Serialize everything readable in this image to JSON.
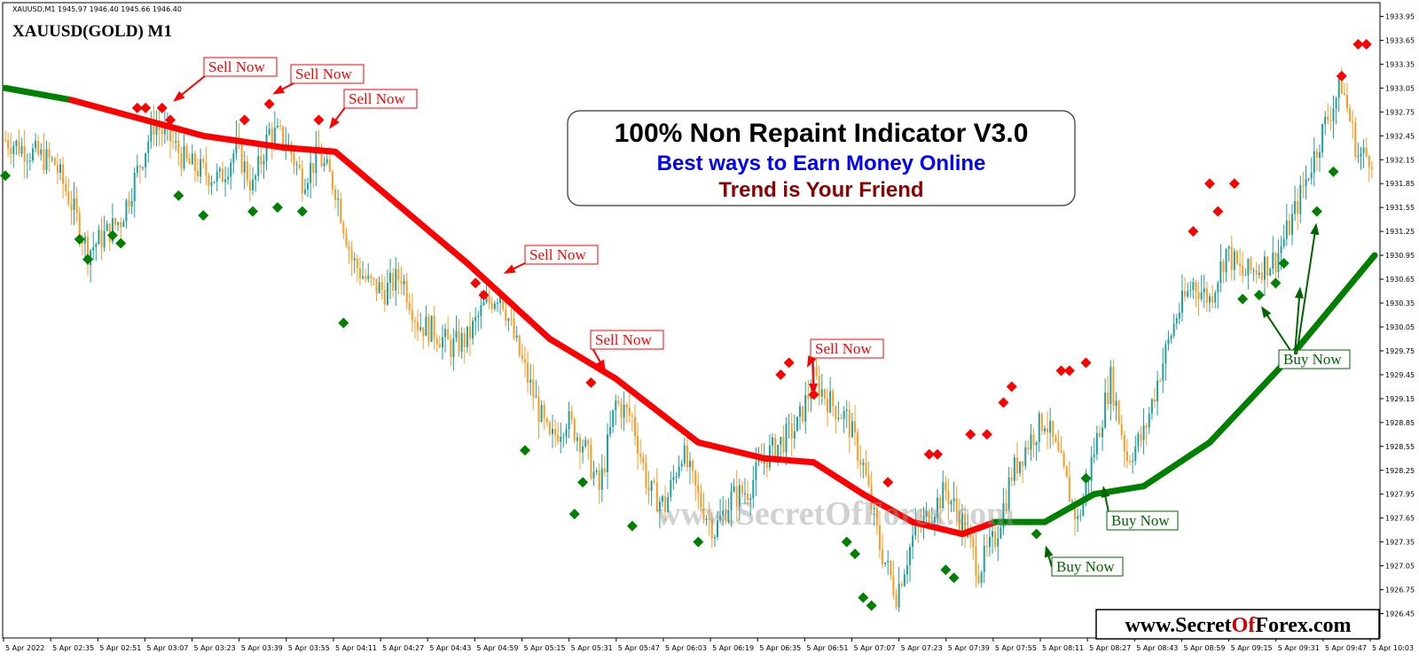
{
  "header": {
    "info_line": "XAUUSD,M1  1945.97 1946.40 1945.66 1946.40",
    "symbol_title": "XAUUSD(GOLD) M1"
  },
  "headline": {
    "line1": "100% Non Repaint Indicator V3.0",
    "line2": "Best ways to Earn Money Online",
    "line3": "Trend is Your Friend"
  },
  "watermark": "www.SecretOfForex.com",
  "url_box": {
    "part1": "www.Secret",
    "part2": "Of",
    "part3": "Forex.com"
  },
  "colors": {
    "bull_candle": "#1fa0a0",
    "bear_candle": "#ff9a1f",
    "trend_down": "#ff0000",
    "trend_up": "#008000",
    "sell_marker": "#ff0000",
    "buy_marker": "#008000",
    "sell_label": "#ff0000",
    "buy_label": "#006400"
  },
  "labels": {
    "sell": "Sell Now",
    "buy": "Buy Now"
  },
  "chart_data": {
    "type": "candlestick",
    "symbol": "XAUUSD",
    "timeframe": "M1",
    "ylim": [
      1926.3,
      1934.0
    ],
    "y_ticks": [
      "1933.95",
      "1933.65",
      "1933.35",
      "1933.05",
      "1932.75",
      "1932.45",
      "1932.15",
      "1931.85",
      "1931.55",
      "1931.25",
      "1930.95",
      "1930.65",
      "1930.35",
      "1930.05",
      "1929.75",
      "1929.45",
      "1929.15",
      "1928.85",
      "1928.55",
      "1928.25",
      "1927.95",
      "1927.65",
      "1927.35",
      "1927.05",
      "1926.75",
      "1926.45"
    ],
    "x_ticks": [
      "5 Apr 2022",
      "5 Apr 02:35",
      "5 Apr 02:51",
      "5 Apr 03:07",
      "5 Apr 03:23",
      "5 Apr 03:39",
      "5 Apr 03:55",
      "5 Apr 04:11",
      "5 Apr 04:27",
      "5 Apr 04:43",
      "5 Apr 04:59",
      "5 Apr 05:15",
      "5 Apr 05:31",
      "5 Apr 05:47",
      "5 Apr 06:03",
      "5 Apr 06:19",
      "5 Apr 06:35",
      "5 Apr 06:51",
      "5 Apr 07:07",
      "5 Apr 07:23",
      "5 Apr 07:39",
      "5 Apr 07:55",
      "5 Apr 08:11",
      "5 Apr 08:27",
      "5 Apr 08:43",
      "5 Apr 08:59",
      "5 Apr 09:15",
      "5 Apr 09:31",
      "5 Apr 09:47",
      "5 Apr 10:03"
    ],
    "price_path": [
      [
        0,
        1932.4
      ],
      [
        2,
        1932.3
      ],
      [
        4,
        1932.2
      ],
      [
        6,
        1932.1
      ],
      [
        8,
        1931.6
      ],
      [
        10,
        1931.0
      ],
      [
        12,
        1931.2
      ],
      [
        14,
        1931.4
      ],
      [
        16,
        1932.0
      ],
      [
        18,
        1932.6
      ],
      [
        20,
        1932.4
      ],
      [
        22,
        1932.1
      ],
      [
        24,
        1932.0
      ],
      [
        26,
        1931.9
      ],
      [
        28,
        1932.3
      ],
      [
        30,
        1931.8
      ],
      [
        32,
        1932.5
      ],
      [
        34,
        1932.4
      ],
      [
        36,
        1931.9
      ],
      [
        38,
        1932.2
      ],
      [
        40,
        1931.8
      ],
      [
        42,
        1930.9
      ],
      [
        44,
        1930.6
      ],
      [
        46,
        1930.5
      ],
      [
        48,
        1930.7
      ],
      [
        50,
        1930.1
      ],
      [
        52,
        1930.0
      ],
      [
        54,
        1929.8
      ],
      [
        56,
        1929.9
      ],
      [
        58,
        1930.3
      ],
      [
        60,
        1930.5
      ],
      [
        62,
        1929.8
      ],
      [
        64,
        1929.2
      ],
      [
        66,
        1928.6
      ],
      [
        68,
        1928.9
      ],
      [
        70,
        1928.6
      ],
      [
        72,
        1928.0
      ],
      [
        74,
        1929.1
      ],
      [
        76,
        1928.9
      ],
      [
        78,
        1928.0
      ],
      [
        80,
        1927.8
      ],
      [
        82,
        1928.5
      ],
      [
        84,
        1927.9
      ],
      [
        86,
        1927.5
      ],
      [
        88,
        1927.9
      ],
      [
        90,
        1928.0
      ],
      [
        92,
        1928.4
      ],
      [
        94,
        1928.6
      ],
      [
        96,
        1928.8
      ],
      [
        98,
        1929.4
      ],
      [
        100,
        1929.1
      ],
      [
        102,
        1928.9
      ],
      [
        104,
        1928.3
      ],
      [
        106,
        1927.3
      ],
      [
        108,
        1926.7
      ],
      [
        110,
        1927.4
      ],
      [
        112,
        1927.7
      ],
      [
        114,
        1928.0
      ],
      [
        116,
        1927.6
      ],
      [
        118,
        1927.0
      ],
      [
        120,
        1927.4
      ],
      [
        122,
        1928.2
      ],
      [
        124,
        1928.6
      ],
      [
        126,
        1928.9
      ],
      [
        128,
        1928.3
      ],
      [
        130,
        1927.6
      ],
      [
        132,
        1928.5
      ],
      [
        134,
        1929.4
      ],
      [
        136,
        1928.4
      ],
      [
        138,
        1928.7
      ],
      [
        140,
        1929.5
      ],
      [
        142,
        1930.2
      ],
      [
        144,
        1930.6
      ],
      [
        146,
        1930.4
      ],
      [
        148,
        1931.0
      ],
      [
        150,
        1930.7
      ],
      [
        152,
        1930.8
      ],
      [
        154,
        1930.9
      ],
      [
        156,
        1931.4
      ],
      [
        158,
        1932.0
      ],
      [
        160,
        1932.6
      ],
      [
        162,
        1933.1
      ],
      [
        164,
        1932.2
      ],
      [
        166,
        1932.2
      ]
    ],
    "trend_line": [
      {
        "x": 0,
        "y": 1933.05,
        "state": "up"
      },
      {
        "x": 8,
        "y": 1932.9,
        "state": "down"
      },
      {
        "x": 24,
        "y": 1932.45,
        "state": "down"
      },
      {
        "x": 34,
        "y": 1932.3,
        "state": "down"
      },
      {
        "x": 40,
        "y": 1932.25,
        "state": "down"
      },
      {
        "x": 56,
        "y": 1930.85,
        "state": "down"
      },
      {
        "x": 66,
        "y": 1929.9,
        "state": "down"
      },
      {
        "x": 74,
        "y": 1929.4,
        "state": "down"
      },
      {
        "x": 84,
        "y": 1928.6,
        "state": "down"
      },
      {
        "x": 92,
        "y": 1928.4,
        "state": "down"
      },
      {
        "x": 98,
        "y": 1928.35,
        "state": "down"
      },
      {
        "x": 104,
        "y": 1927.95,
        "state": "down"
      },
      {
        "x": 110,
        "y": 1927.6,
        "state": "down"
      },
      {
        "x": 116,
        "y": 1927.45,
        "state": "down"
      },
      {
        "x": 120,
        "y": 1927.6,
        "state": "up"
      },
      {
        "x": 126,
        "y": 1927.6,
        "state": "up"
      },
      {
        "x": 132,
        "y": 1927.95,
        "state": "up"
      },
      {
        "x": 138,
        "y": 1928.05,
        "state": "up"
      },
      {
        "x": 146,
        "y": 1928.6,
        "state": "up"
      },
      {
        "x": 156,
        "y": 1929.7,
        "state": "up"
      },
      {
        "x": 166,
        "y": 1930.95,
        "state": "up"
      }
    ],
    "sell_markers": [
      [
        16,
        1932.8
      ],
      [
        17,
        1932.8
      ],
      [
        19,
        1932.8
      ],
      [
        20,
        1932.65
      ],
      [
        29,
        1932.65
      ],
      [
        32,
        1932.85
      ],
      [
        38,
        1932.65
      ],
      [
        57,
        1930.6
      ],
      [
        58,
        1930.45
      ],
      [
        71,
        1929.35
      ],
      [
        94,
        1929.45
      ],
      [
        95,
        1929.6
      ],
      [
        98,
        1929.2
      ],
      [
        107,
        1928.1
      ],
      [
        112,
        1928.45
      ],
      [
        113,
        1928.45
      ],
      [
        117,
        1928.7
      ],
      [
        119,
        1928.7
      ],
      [
        121,
        1929.1
      ],
      [
        122,
        1929.3
      ],
      [
        128,
        1929.5
      ],
      [
        129,
        1929.5
      ],
      [
        131,
        1929.6
      ],
      [
        144,
        1931.25
      ],
      [
        146,
        1931.85
      ],
      [
        147,
        1931.5
      ],
      [
        149,
        1931.85
      ],
      [
        162,
        1933.2
      ],
      [
        164,
        1933.6
      ],
      [
        165,
        1933.6
      ]
    ],
    "buy_markers": [
      [
        0,
        1931.95
      ],
      [
        9,
        1931.15
      ],
      [
        10,
        1930.9
      ],
      [
        13,
        1931.2
      ],
      [
        14,
        1931.1
      ],
      [
        21,
        1931.7
      ],
      [
        24,
        1931.45
      ],
      [
        30,
        1931.5
      ],
      [
        33,
        1931.55
      ],
      [
        36,
        1931.5
      ],
      [
        41,
        1930.1
      ],
      [
        63,
        1928.5
      ],
      [
        70,
        1928.1
      ],
      [
        69,
        1927.7
      ],
      [
        76,
        1927.55
      ],
      [
        84,
        1927.35
      ],
      [
        102,
        1927.35
      ],
      [
        103,
        1927.2
      ],
      [
        104,
        1926.65
      ],
      [
        105,
        1926.55
      ],
      [
        114,
        1927.0
      ],
      [
        115,
        1926.9
      ],
      [
        125,
        1927.45
      ],
      [
        131,
        1928.15
      ],
      [
        150,
        1930.4
      ],
      [
        152,
        1930.45
      ],
      [
        154,
        1930.6
      ],
      [
        155,
        1930.85
      ],
      [
        159,
        1931.5
      ],
      [
        161,
        1932.0
      ]
    ],
    "annotations": [
      {
        "text": "Sell Now",
        "kind": "sell",
        "anchor_x": 20,
        "anchor_y": 1932.85
      },
      {
        "text": "Sell Now",
        "kind": "sell",
        "anchor_x": 32,
        "anchor_y": 1932.95
      },
      {
        "text": "Sell Now",
        "kind": "sell",
        "anchor_x": 39,
        "anchor_y": 1932.5
      },
      {
        "text": "Sell Now",
        "kind": "sell",
        "anchor_x": 60,
        "anchor_y": 1930.7
      },
      {
        "text": "Sell Now",
        "kind": "sell",
        "anchor_x": 73,
        "anchor_y": 1929.45
      },
      {
        "text": "Sell Now",
        "kind": "sell",
        "anchor_x": 97,
        "anchor_y": 1929.5
      },
      {
        "text": "Sell Now",
        "kind": "sell",
        "anchor_x": 98,
        "anchor_y": 1929.15
      },
      {
        "text": "Buy Now",
        "kind": "buy",
        "anchor_x": 126,
        "anchor_y": 1927.35
      },
      {
        "text": "Buy Now",
        "kind": "buy",
        "anchor_x": 133,
        "anchor_y": 1928.1
      },
      {
        "text": "Buy Now",
        "kind": "buy",
        "anchor_x": 152,
        "anchor_y": 1930.35
      },
      {
        "text": "Buy Now",
        "kind": "buy",
        "anchor_x": 157,
        "anchor_y": 1930.6
      },
      {
        "text": "Buy Now",
        "kind": "buy",
        "anchor_x": 159,
        "anchor_y": 1931.4
      }
    ],
    "grid": false,
    "legend": "none"
  }
}
